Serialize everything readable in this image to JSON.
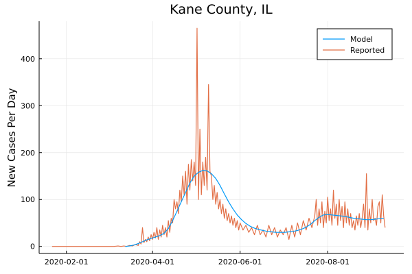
{
  "chart_data": {
    "type": "line",
    "title": "Kane County, IL",
    "xlabel": "",
    "ylabel": "New Cases Per Day",
    "x_axis": {
      "kind": "date",
      "range": [
        "2020-01-13",
        "2020-09-23"
      ],
      "ticks": [
        "2020-02-01",
        "2020-04-01",
        "2020-06-01",
        "2020-08-01"
      ]
    },
    "y_axis": {
      "range": [
        -15,
        480
      ],
      "ticks": [
        0,
        100,
        200,
        300,
        400
      ]
    },
    "grid": true,
    "legend": {
      "placement": "top-right"
    },
    "series": [
      {
        "name": "Model",
        "color": "#009af9",
        "points": [
          [
            "2020-03-13",
            0
          ],
          [
            "2020-03-16",
            1
          ],
          [
            "2020-03-19",
            3
          ],
          [
            "2020-03-22",
            6
          ],
          [
            "2020-03-25",
            10
          ],
          [
            "2020-03-28",
            14
          ],
          [
            "2020-03-31",
            17
          ],
          [
            "2020-04-03",
            20
          ],
          [
            "2020-04-06",
            23
          ],
          [
            "2020-04-09",
            28
          ],
          [
            "2020-04-12",
            38
          ],
          [
            "2020-04-15",
            55
          ],
          [
            "2020-04-18",
            75
          ],
          [
            "2020-04-21",
            95
          ],
          [
            "2020-04-24",
            115
          ],
          [
            "2020-04-27",
            135
          ],
          [
            "2020-04-30",
            150
          ],
          [
            "2020-05-03",
            158
          ],
          [
            "2020-05-06",
            162
          ],
          [
            "2020-05-09",
            161
          ],
          [
            "2020-05-12",
            155
          ],
          [
            "2020-05-15",
            145
          ],
          [
            "2020-05-18",
            130
          ],
          [
            "2020-05-21",
            112
          ],
          [
            "2020-05-24",
            95
          ],
          [
            "2020-05-27",
            80
          ],
          [
            "2020-05-30",
            67
          ],
          [
            "2020-06-02",
            57
          ],
          [
            "2020-06-05",
            49
          ],
          [
            "2020-06-08",
            43
          ],
          [
            "2020-06-11",
            39
          ],
          [
            "2020-06-14",
            36
          ],
          [
            "2020-06-17",
            34
          ],
          [
            "2020-06-20",
            32
          ],
          [
            "2020-06-23",
            31
          ],
          [
            "2020-06-26",
            30
          ],
          [
            "2020-06-29",
            30
          ],
          [
            "2020-07-02",
            30
          ],
          [
            "2020-07-05",
            31
          ],
          [
            "2020-07-08",
            32
          ],
          [
            "2020-07-11",
            34
          ],
          [
            "2020-07-14",
            37
          ],
          [
            "2020-07-17",
            41
          ],
          [
            "2020-07-20",
            47
          ],
          [
            "2020-07-23",
            55
          ],
          [
            "2020-07-26",
            62
          ],
          [
            "2020-07-29",
            67
          ],
          [
            "2020-08-01",
            68
          ],
          [
            "2020-08-04",
            67
          ],
          [
            "2020-08-07",
            66
          ],
          [
            "2020-08-10",
            65
          ],
          [
            "2020-08-13",
            64
          ],
          [
            "2020-08-16",
            62
          ],
          [
            "2020-08-19",
            60
          ],
          [
            "2020-08-22",
            59
          ],
          [
            "2020-08-25",
            58
          ],
          [
            "2020-08-28",
            57
          ],
          [
            "2020-08-31",
            57
          ],
          [
            "2020-09-03",
            58
          ],
          [
            "2020-09-06",
            59
          ],
          [
            "2020-09-09",
            60
          ]
        ]
      },
      {
        "name": "Reported",
        "color": "#e26f46",
        "points": [
          [
            "2020-01-22",
            0
          ],
          [
            "2020-02-10",
            0
          ],
          [
            "2020-03-01",
            0
          ],
          [
            "2020-03-05",
            0
          ],
          [
            "2020-03-08",
            1
          ],
          [
            "2020-03-10",
            0
          ],
          [
            "2020-03-12",
            1
          ],
          [
            "2020-03-14",
            0
          ],
          [
            "2020-03-16",
            2
          ],
          [
            "2020-03-18",
            1
          ],
          [
            "2020-03-20",
            4
          ],
          [
            "2020-03-22",
            2
          ],
          [
            "2020-03-23",
            10
          ],
          [
            "2020-03-24",
            5
          ],
          [
            "2020-03-25",
            40
          ],
          [
            "2020-03-26",
            8
          ],
          [
            "2020-03-27",
            15
          ],
          [
            "2020-03-28",
            10
          ],
          [
            "2020-03-29",
            20
          ],
          [
            "2020-03-30",
            12
          ],
          [
            "2020-03-31",
            25
          ],
          [
            "2020-04-01",
            15
          ],
          [
            "2020-04-02",
            30
          ],
          [
            "2020-04-03",
            18
          ],
          [
            "2020-04-04",
            40
          ],
          [
            "2020-04-05",
            15
          ],
          [
            "2020-04-06",
            35
          ],
          [
            "2020-04-07",
            20
          ],
          [
            "2020-04-08",
            45
          ],
          [
            "2020-04-09",
            25
          ],
          [
            "2020-04-10",
            40
          ],
          [
            "2020-04-11",
            20
          ],
          [
            "2020-04-12",
            55
          ],
          [
            "2020-04-13",
            30
          ],
          [
            "2020-04-14",
            60
          ],
          [
            "2020-04-15",
            50
          ],
          [
            "2020-04-16",
            100
          ],
          [
            "2020-04-17",
            80
          ],
          [
            "2020-04-18",
            95
          ],
          [
            "2020-04-19",
            70
          ],
          [
            "2020-04-20",
            120
          ],
          [
            "2020-04-21",
            95
          ],
          [
            "2020-04-22",
            150
          ],
          [
            "2020-04-23",
            110
          ],
          [
            "2020-04-24",
            160
          ],
          [
            "2020-04-25",
            90
          ],
          [
            "2020-04-26",
            175
          ],
          [
            "2020-04-27",
            120
          ],
          [
            "2020-04-28",
            185
          ],
          [
            "2020-04-29",
            140
          ],
          [
            "2020-04-30",
            180
          ],
          [
            "2020-05-01",
            130
          ],
          [
            "2020-05-02",
            465
          ],
          [
            "2020-05-03",
            100
          ],
          [
            "2020-05-04",
            250
          ],
          [
            "2020-05-05",
            110
          ],
          [
            "2020-05-06",
            180
          ],
          [
            "2020-05-07",
            130
          ],
          [
            "2020-05-08",
            190
          ],
          [
            "2020-05-09",
            120
          ],
          [
            "2020-05-10",
            345
          ],
          [
            "2020-05-11",
            160
          ],
          [
            "2020-05-12",
            150
          ],
          [
            "2020-05-13",
            100
          ],
          [
            "2020-05-14",
            130
          ],
          [
            "2020-05-15",
            90
          ],
          [
            "2020-05-16",
            115
          ],
          [
            "2020-05-17",
            80
          ],
          [
            "2020-05-18",
            100
          ],
          [
            "2020-05-19",
            70
          ],
          [
            "2020-05-20",
            90
          ],
          [
            "2020-05-21",
            60
          ],
          [
            "2020-05-22",
            80
          ],
          [
            "2020-05-23",
            55
          ],
          [
            "2020-05-24",
            70
          ],
          [
            "2020-05-25",
            50
          ],
          [
            "2020-05-26",
            65
          ],
          [
            "2020-05-27",
            45
          ],
          [
            "2020-05-28",
            60
          ],
          [
            "2020-05-29",
            40
          ],
          [
            "2020-05-30",
            55
          ],
          [
            "2020-05-31",
            35
          ],
          [
            "2020-06-01",
            50
          ],
          [
            "2020-06-03",
            35
          ],
          [
            "2020-06-05",
            45
          ],
          [
            "2020-06-07",
            30
          ],
          [
            "2020-06-09",
            40
          ],
          [
            "2020-06-11",
            25
          ],
          [
            "2020-06-13",
            45
          ],
          [
            "2020-06-15",
            25
          ],
          [
            "2020-06-17",
            35
          ],
          [
            "2020-06-19",
            20
          ],
          [
            "2020-06-21",
            45
          ],
          [
            "2020-06-23",
            25
          ],
          [
            "2020-06-25",
            40
          ],
          [
            "2020-06-27",
            20
          ],
          [
            "2020-06-29",
            35
          ],
          [
            "2020-07-01",
            25
          ],
          [
            "2020-07-03",
            40
          ],
          [
            "2020-07-05",
            15
          ],
          [
            "2020-07-07",
            45
          ],
          [
            "2020-07-09",
            20
          ],
          [
            "2020-07-11",
            50
          ],
          [
            "2020-07-13",
            25
          ],
          [
            "2020-07-15",
            55
          ],
          [
            "2020-07-17",
            35
          ],
          [
            "2020-07-19",
            60
          ],
          [
            "2020-07-21",
            40
          ],
          [
            "2020-07-23",
            65
          ],
          [
            "2020-07-24",
            100
          ],
          [
            "2020-07-25",
            45
          ],
          [
            "2020-07-26",
            80
          ],
          [
            "2020-07-27",
            50
          ],
          [
            "2020-07-28",
            95
          ],
          [
            "2020-07-29",
            40
          ],
          [
            "2020-07-30",
            75
          ],
          [
            "2020-07-31",
            50
          ],
          [
            "2020-08-01",
            105
          ],
          [
            "2020-08-02",
            55
          ],
          [
            "2020-08-03",
            80
          ],
          [
            "2020-08-04",
            45
          ],
          [
            "2020-08-05",
            120
          ],
          [
            "2020-08-06",
            60
          ],
          [
            "2020-08-07",
            90
          ],
          [
            "2020-08-08",
            45
          ],
          [
            "2020-08-09",
            100
          ],
          [
            "2020-08-10",
            55
          ],
          [
            "2020-08-11",
            85
          ],
          [
            "2020-08-12",
            40
          ],
          [
            "2020-08-13",
            95
          ],
          [
            "2020-08-14",
            50
          ],
          [
            "2020-08-15",
            80
          ],
          [
            "2020-08-16",
            45
          ],
          [
            "2020-08-17",
            70
          ],
          [
            "2020-08-18",
            40
          ],
          [
            "2020-08-19",
            55
          ],
          [
            "2020-08-20",
            35
          ],
          [
            "2020-08-21",
            65
          ],
          [
            "2020-08-22",
            45
          ],
          [
            "2020-08-23",
            70
          ],
          [
            "2020-08-24",
            40
          ],
          [
            "2020-08-25",
            60
          ],
          [
            "2020-08-26",
            90
          ],
          [
            "2020-08-27",
            40
          ],
          [
            "2020-08-28",
            155
          ],
          [
            "2020-08-29",
            35
          ],
          [
            "2020-08-30",
            80
          ],
          [
            "2020-08-31",
            50
          ],
          [
            "2020-09-01",
            100
          ],
          [
            "2020-09-02",
            55
          ],
          [
            "2020-09-03",
            60
          ],
          [
            "2020-09-04",
            45
          ],
          [
            "2020-09-05",
            85
          ],
          [
            "2020-09-06",
            95
          ],
          [
            "2020-09-07",
            50
          ],
          [
            "2020-09-08",
            110
          ],
          [
            "2020-09-09",
            65
          ],
          [
            "2020-09-10",
            40
          ]
        ]
      }
    ]
  }
}
